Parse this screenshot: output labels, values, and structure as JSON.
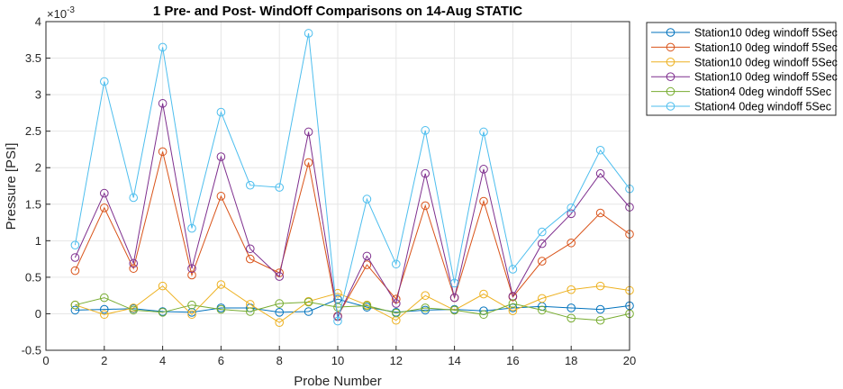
{
  "chart_data": {
    "type": "line",
    "title": "1 Pre- and Post- WindOff Comparisons on 14-Aug STATIC",
    "xlabel": "Probe Number",
    "ylabel": "Pressure [PSI]",
    "y_exponent_label": "×10",
    "y_exponent_value": "-3",
    "xlim": [
      0,
      20
    ],
    "ylim": [
      -0.5,
      4
    ],
    "xticks": [
      0,
      2,
      4,
      6,
      8,
      10,
      12,
      14,
      16,
      18,
      20
    ],
    "yticks": [
      -0.5,
      0,
      0.5,
      1,
      1.5,
      2,
      2.5,
      3,
      3.5,
      4
    ],
    "ytick_labels": [
      "-0.5",
      "0",
      "0.5",
      "1",
      "1.5",
      "2",
      "2.5",
      "3",
      "3.5",
      "4"
    ],
    "grid": true,
    "legend_position": "outside-top-right",
    "x": [
      1,
      2,
      3,
      4,
      5,
      6,
      7,
      8,
      9,
      10,
      11,
      12,
      13,
      14,
      15,
      16,
      17,
      18,
      19,
      20
    ],
    "series": [
      {
        "name": "Station10 0deg windoff 5Sec",
        "color": "#0072bd",
        "values": [
          0.05,
          0.06,
          0.07,
          0.03,
          0.02,
          0.08,
          0.08,
          0.02,
          0.03,
          0.2,
          0.09,
          0.02,
          0.05,
          0.06,
          0.04,
          0.08,
          0.1,
          0.08,
          0.06,
          0.11
        ]
      },
      {
        "name": "Station10 0deg windoff 5Sec",
        "color": "#d95319",
        "values": [
          0.59,
          1.45,
          0.62,
          2.22,
          0.53,
          1.61,
          0.75,
          0.56,
          2.07,
          -0.03,
          0.67,
          0.2,
          1.48,
          0.22,
          1.54,
          0.23,
          0.72,
          0.97,
          1.38,
          1.09
        ]
      },
      {
        "name": "Station10 0deg windoff 5Sec",
        "color": "#edb120",
        "values": [
          0.12,
          -0.01,
          0.08,
          0.38,
          -0.01,
          0.4,
          0.13,
          -0.12,
          0.17,
          0.28,
          0.12,
          -0.09,
          0.25,
          0.05,
          0.27,
          0.04,
          0.21,
          0.33,
          0.38,
          0.32
        ]
      },
      {
        "name": "Station10 0deg windoff 5Sec",
        "color": "#7e2f8e",
        "values": [
          0.77,
          1.65,
          0.69,
          2.88,
          0.62,
          2.15,
          0.89,
          0.51,
          2.49,
          -0.04,
          0.79,
          0.14,
          1.92,
          0.22,
          1.98,
          0.24,
          0.96,
          1.37,
          1.92,
          1.46
        ]
      },
      {
        "name": "Station4 0deg windoff 5Sec",
        "color": "#77ac30",
        "values": [
          0.12,
          0.22,
          0.05,
          0.02,
          0.12,
          0.06,
          0.03,
          0.14,
          0.16,
          0.09,
          0.11,
          0.01,
          0.08,
          0.05,
          -0.01,
          0.14,
          0.05,
          -0.06,
          -0.09,
          0.0
        ]
      },
      {
        "name": "Station4 0deg windoff 5Sec",
        "color": "#4dbeee",
        "values": [
          0.94,
          3.18,
          1.59,
          3.65,
          1.17,
          2.76,
          1.76,
          1.73,
          3.84,
          -0.1,
          1.57,
          0.68,
          2.51,
          0.42,
          2.49,
          0.61,
          1.12,
          1.45,
          2.24,
          1.71
        ]
      }
    ]
  }
}
